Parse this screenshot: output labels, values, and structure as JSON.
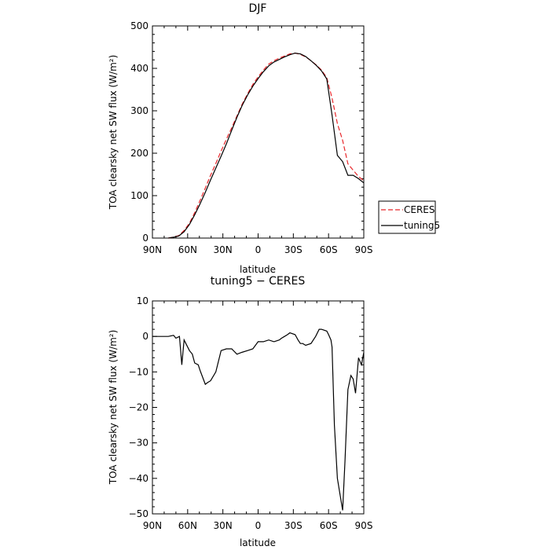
{
  "chart_data": [
    {
      "type": "line",
      "title": "DJF",
      "xlabel": "latitude",
      "ylabel": "TOA clearsky net SW flux (W/m²)",
      "xlim": [
        90,
        -90
      ],
      "ylim": [
        0,
        500
      ],
      "xticks": [
        90,
        60,
        30,
        0,
        -30,
        -60,
        -90
      ],
      "xtick_labels": [
        "90N",
        "60N",
        "30N",
        "0",
        "30S",
        "60S",
        "90S"
      ],
      "yticks": [
        0,
        100,
        200,
        300,
        400,
        500
      ],
      "ytick_labels": [
        "0",
        "100",
        "200",
        "300",
        "400",
        "500"
      ],
      "legend_position": "outside-right",
      "series": [
        {
          "name": "CERES",
          "color": "#e8262a",
          "dash": "dashed",
          "x": [
            76.5,
            72,
            67.5,
            63,
            58.5,
            54,
            49.5,
            45,
            40.5,
            36,
            31.5,
            27,
            22.5,
            18,
            13.5,
            9,
            4.5,
            0,
            -4.5,
            -9,
            -13.5,
            -18,
            -22.5,
            -27,
            -31.5,
            -36,
            -40.5,
            -45,
            -49.5,
            -54,
            -58.5,
            -63,
            -67.5,
            -72,
            -76.5,
            -81,
            -85.5,
            -90
          ],
          "y": [
            0,
            2,
            6,
            18,
            35,
            60,
            88,
            118,
            148,
            176,
            205,
            233,
            260,
            288,
            316,
            340,
            362,
            380,
            396,
            410,
            418,
            424,
            429,
            434,
            436,
            433,
            427,
            418,
            408,
            396,
            378,
            330,
            270,
            230,
            175,
            160,
            145,
            135
          ]
        },
        {
          "name": "tuning5",
          "color": "#000000",
          "dash": "solid",
          "x": [
            76.5,
            72,
            67.5,
            63,
            58.5,
            54,
            49.5,
            45,
            40.5,
            36,
            31.5,
            27,
            22.5,
            18,
            13.5,
            9,
            4.5,
            0,
            -4.5,
            -9,
            -13.5,
            -18,
            -22.5,
            -27,
            -31.5,
            -36,
            -40.5,
            -45,
            -49.5,
            -54,
            -58.5,
            -63,
            -67.5,
            -72,
            -76.5,
            -81,
            -85.5,
            -90
          ],
          "y": [
            0,
            2,
            5,
            15,
            32,
            55,
            80,
            108,
            137,
            165,
            193,
            222,
            254,
            285,
            313,
            337,
            358,
            376,
            392,
            406,
            415,
            421,
            427,
            432,
            436,
            434,
            428,
            418,
            407,
            394,
            375,
            290,
            195,
            180,
            148,
            148,
            140,
            130
          ]
        }
      ]
    },
    {
      "type": "line",
      "title": "tuning5 − CERES",
      "xlabel": "latitude",
      "ylabel": "TOA clearsky net SW flux (W/m²)",
      "xlim": [
        90,
        -90
      ],
      "ylim": [
        -50,
        10
      ],
      "xticks": [
        90,
        60,
        30,
        0,
        -30,
        -60,
        -90
      ],
      "xtick_labels": [
        "90N",
        "60N",
        "30N",
        "0",
        "30S",
        "60S",
        "90S"
      ],
      "yticks": [
        -50,
        -40,
        -30,
        -20,
        -10,
        0,
        10
      ],
      "ytick_labels": [
        "−50",
        "−40",
        "−30",
        "−20",
        "−10",
        "0",
        "10"
      ],
      "series": [
        {
          "color": "#000000",
          "x": [
            90,
            76.5,
            72,
            70,
            67,
            65,
            63,
            58.5,
            56,
            54,
            51,
            49.5,
            45,
            43,
            40.5,
            36,
            31.5,
            27,
            22.5,
            18,
            14,
            9,
            4.5,
            0,
            -4.5,
            -9,
            -13.5,
            -18,
            -20,
            -22.5,
            -25,
            -27,
            -31.5,
            -34,
            -36,
            -38,
            -40.5,
            -45,
            -49,
            -52,
            -54,
            -58.5,
            -60,
            -62,
            -63,
            -65,
            -67.5,
            -70,
            -72,
            -74,
            -76.5,
            -79,
            -81,
            -83,
            -85.5,
            -88,
            -90
          ],
          "y": [
            0,
            0,
            0.3,
            -0.5,
            0,
            -8,
            -1,
            -4,
            -5,
            -7.5,
            -8,
            -9.5,
            -13.5,
            -13,
            -12.5,
            -10,
            -4,
            -3.5,
            -3.5,
            -5,
            -4.5,
            -4,
            -3.5,
            -1.5,
            -1.5,
            -1,
            -1.5,
            -1,
            -0.5,
            0,
            0.5,
            1,
            0.5,
            -1,
            -2,
            -2,
            -2.5,
            -2,
            0,
            2,
            2,
            1.5,
            0.5,
            -1,
            -3,
            -25,
            -40,
            -45,
            -49,
            -35,
            -15,
            -11,
            -12,
            -16,
            -6,
            -8,
            -4.5
          ]
        }
      ]
    }
  ]
}
